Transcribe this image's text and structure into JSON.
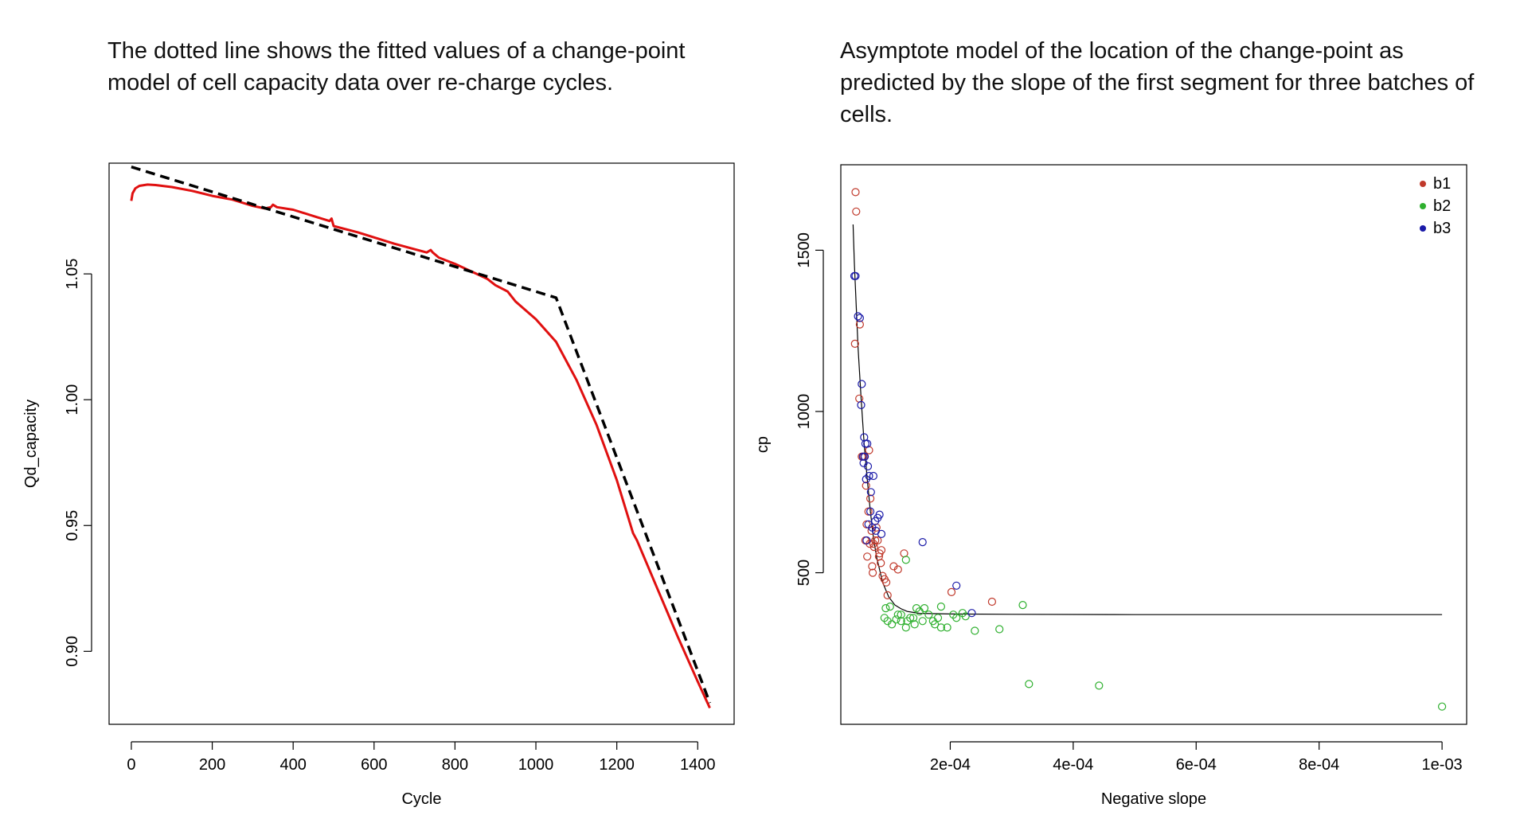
{
  "captions": {
    "left": "The dotted line shows the fitted values of a change-point model of cell capacity data over re-charge cycles.",
    "right": "Asymptote model of the location of the change-point as predicted by the slope of the first segment for three batches of cells."
  },
  "colors": {
    "observed": "#e01010",
    "fitted": "#000000",
    "b1": "#c0392b",
    "b2": "#2fb02f",
    "b3": "#1a1aa8",
    "curve": "#000000"
  },
  "chart_data": [
    {
      "type": "line",
      "title": "",
      "xlabel": "Cycle",
      "ylabel": "Qd_capacity",
      "xlim": [
        -55,
        1490
      ],
      "ylim": [
        0.871,
        1.094
      ],
      "xticks": [
        0,
        200,
        400,
        600,
        800,
        1000,
        1200,
        1400
      ],
      "xtick_labels": [
        "0",
        "200",
        "400",
        "600",
        "800",
        "1000",
        "1200",
        "1400"
      ],
      "yticks": [
        0.9,
        0.95,
        1.0,
        1.05
      ],
      "ytick_labels": [
        "0.90",
        "0.95",
        "1.00",
        "1.05"
      ],
      "grid": false,
      "series": [
        {
          "style": "solid",
          "color": "#e01010",
          "x": [
            0,
            3,
            10,
            20,
            40,
            60,
            100,
            150,
            200,
            250,
            300,
            330,
            345,
            350,
            360,
            400,
            450,
            490,
            495,
            500,
            560,
            650,
            730,
            740,
            745,
            760,
            800,
            840,
            880,
            900,
            930,
            950,
            1000,
            1050,
            1100,
            1150,
            1200,
            1240,
            1250,
            1300,
            1350,
            1400,
            1430
          ],
          "y": [
            1.079,
            1.082,
            1.084,
            1.085,
            1.0855,
            1.0853,
            1.0845,
            1.083,
            1.081,
            1.0795,
            1.077,
            1.076,
            1.0765,
            1.0775,
            1.0765,
            1.0755,
            1.073,
            1.071,
            1.072,
            1.069,
            1.0665,
            1.062,
            1.0585,
            1.0595,
            1.0585,
            1.0565,
            1.054,
            1.051,
            1.048,
            1.0455,
            1.043,
            1.039,
            1.032,
            1.023,
            1.008,
            0.99,
            0.968,
            0.947,
            0.944,
            0.925,
            0.906,
            0.888,
            0.8775
          ]
        },
        {
          "style": "dashed",
          "color": "#000000",
          "x": [
            0,
            1050,
            1430
          ],
          "y": [
            1.0925,
            1.0405,
            0.8795
          ]
        }
      ]
    },
    {
      "type": "scatter",
      "title": "",
      "xlabel": "Negative slope",
      "ylabel": "cp",
      "xlim": [
        2.2e-05,
        0.00104
      ],
      "ylim": [
        30,
        1765
      ],
      "xticks": [
        0.0002,
        0.0004,
        0.0006,
        0.0008,
        0.001
      ],
      "xtick_labels": [
        "2e-04",
        "4e-04",
        "6e-04",
        "8e-04",
        "1e-03"
      ],
      "yticks": [
        500,
        1000,
        1500
      ],
      "ytick_labels": [
        "500",
        "1000",
        "1500"
      ],
      "grid": false,
      "legend": {
        "position": "top-right",
        "entries": [
          {
            "label": "b1",
            "color": "#c0392b"
          },
          {
            "label": "b2",
            "color": "#2fb02f"
          },
          {
            "label": "b3",
            "color": "#1a1aa8"
          }
        ]
      },
      "asymptote_curve": {
        "x": [
          4.2e-05,
          4.4e-05,
          4.7e-05,
          5e-05,
          5.5e-05,
          6e-05,
          6.5e-05,
          7e-05,
          7.5e-05,
          8e-05,
          9e-05,
          0.0001,
          0.00011,
          0.00012,
          0.00013,
          0.00015,
          0.0002,
          0.0003,
          0.0005,
          0.001
        ],
        "y": [
          1580,
          1460,
          1330,
          1200,
          1040,
          900,
          790,
          690,
          610,
          550,
          470,
          425,
          400,
          388,
          380,
          374,
          372,
          371,
          370,
          370
        ]
      },
      "series": [
        {
          "name": "b1",
          "color": "#c0392b",
          "x": [
            4.6e-05,
            4.7e-05,
            4.5e-05,
            5.3e-05,
            5.2e-05,
            5.6e-05,
            6e-05,
            6.3e-05,
            6.8e-05,
            6.4e-05,
            6.2e-05,
            6.7e-05,
            7e-05,
            7.2e-05,
            7.5e-05,
            7.8e-05,
            8e-05,
            8.2e-05,
            8.5e-05,
            8.8e-05,
            6.5e-05,
            7.3e-05,
            8.4e-05,
            9e-05,
            9.3e-05,
            7.6e-05,
            9.8e-05,
            0.000108,
            0.000125,
            0.000115,
            0.000202,
            0.000268,
            9.6e-05,
            6.9e-05,
            7.4e-05,
            8.7e-05
          ],
          "y": [
            1680,
            1620,
            1210,
            1270,
            1040,
            860,
            860,
            770,
            880,
            650,
            600,
            690,
            730,
            630,
            590,
            600,
            640,
            600,
            560,
            570,
            550,
            520,
            550,
            490,
            480,
            580,
            430,
            520,
            560,
            510,
            440,
            410,
            470,
            590,
            500,
            530
          ]
        },
        {
          "name": "b2",
          "color": "#2fb02f",
          "x": [
            0.000128,
            0.00012,
            9.5e-05,
            9.3e-05,
            0.000105,
            0.000112,
            0.00012,
            0.000128,
            0.000135,
            0.000142,
            0.00015,
            0.000158,
            0.000165,
            0.000172,
            0.00018,
            0.000185,
            0.000195,
            0.000205,
            0.00021,
            0.000225,
            0.00024,
            0.000185,
            0.000155,
            0.00014,
            0.00013,
            0.000115,
            9.8e-05,
            0.000145,
            0.000175,
            0.00022,
            0.00028,
            0.000318,
            0.000328,
            0.000442,
            0.001,
            0.000102
          ],
          "y": [
            540,
            370,
            390,
            360,
            340,
            355,
            350,
            330,
            360,
            340,
            380,
            390,
            370,
            350,
            360,
            395,
            330,
            370,
            360,
            365,
            320,
            330,
            350,
            360,
            350,
            370,
            350,
            390,
            340,
            375,
            325,
            400,
            155,
            150,
            85,
            395
          ]
        },
        {
          "name": "b3",
          "color": "#1a1aa8",
          "x": [
            4.4e-05,
            4.6e-05,
            5e-05,
            5.3e-05,
            5.6e-05,
            5.5e-05,
            6e-05,
            6.2e-05,
            6.5e-05,
            6.1e-05,
            5.9e-05,
            6.6e-05,
            6.3e-05,
            6.8e-05,
            7.1e-05,
            7.5e-05,
            7.8e-05,
            8.2e-05,
            8.5e-05,
            8.8e-05,
            7e-05,
            6.4e-05,
            7.3e-05,
            0.000155,
            0.00021,
            0.000235,
            6.7e-05,
            5.8e-05,
            7.9e-05
          ],
          "y": [
            1420,
            1420,
            1295,
            1290,
            1085,
            1020,
            920,
            900,
            900,
            860,
            840,
            830,
            790,
            800,
            750,
            800,
            660,
            670,
            680,
            620,
            690,
            600,
            640,
            595,
            460,
            375,
            650,
            860,
            630
          ]
        }
      ]
    }
  ]
}
